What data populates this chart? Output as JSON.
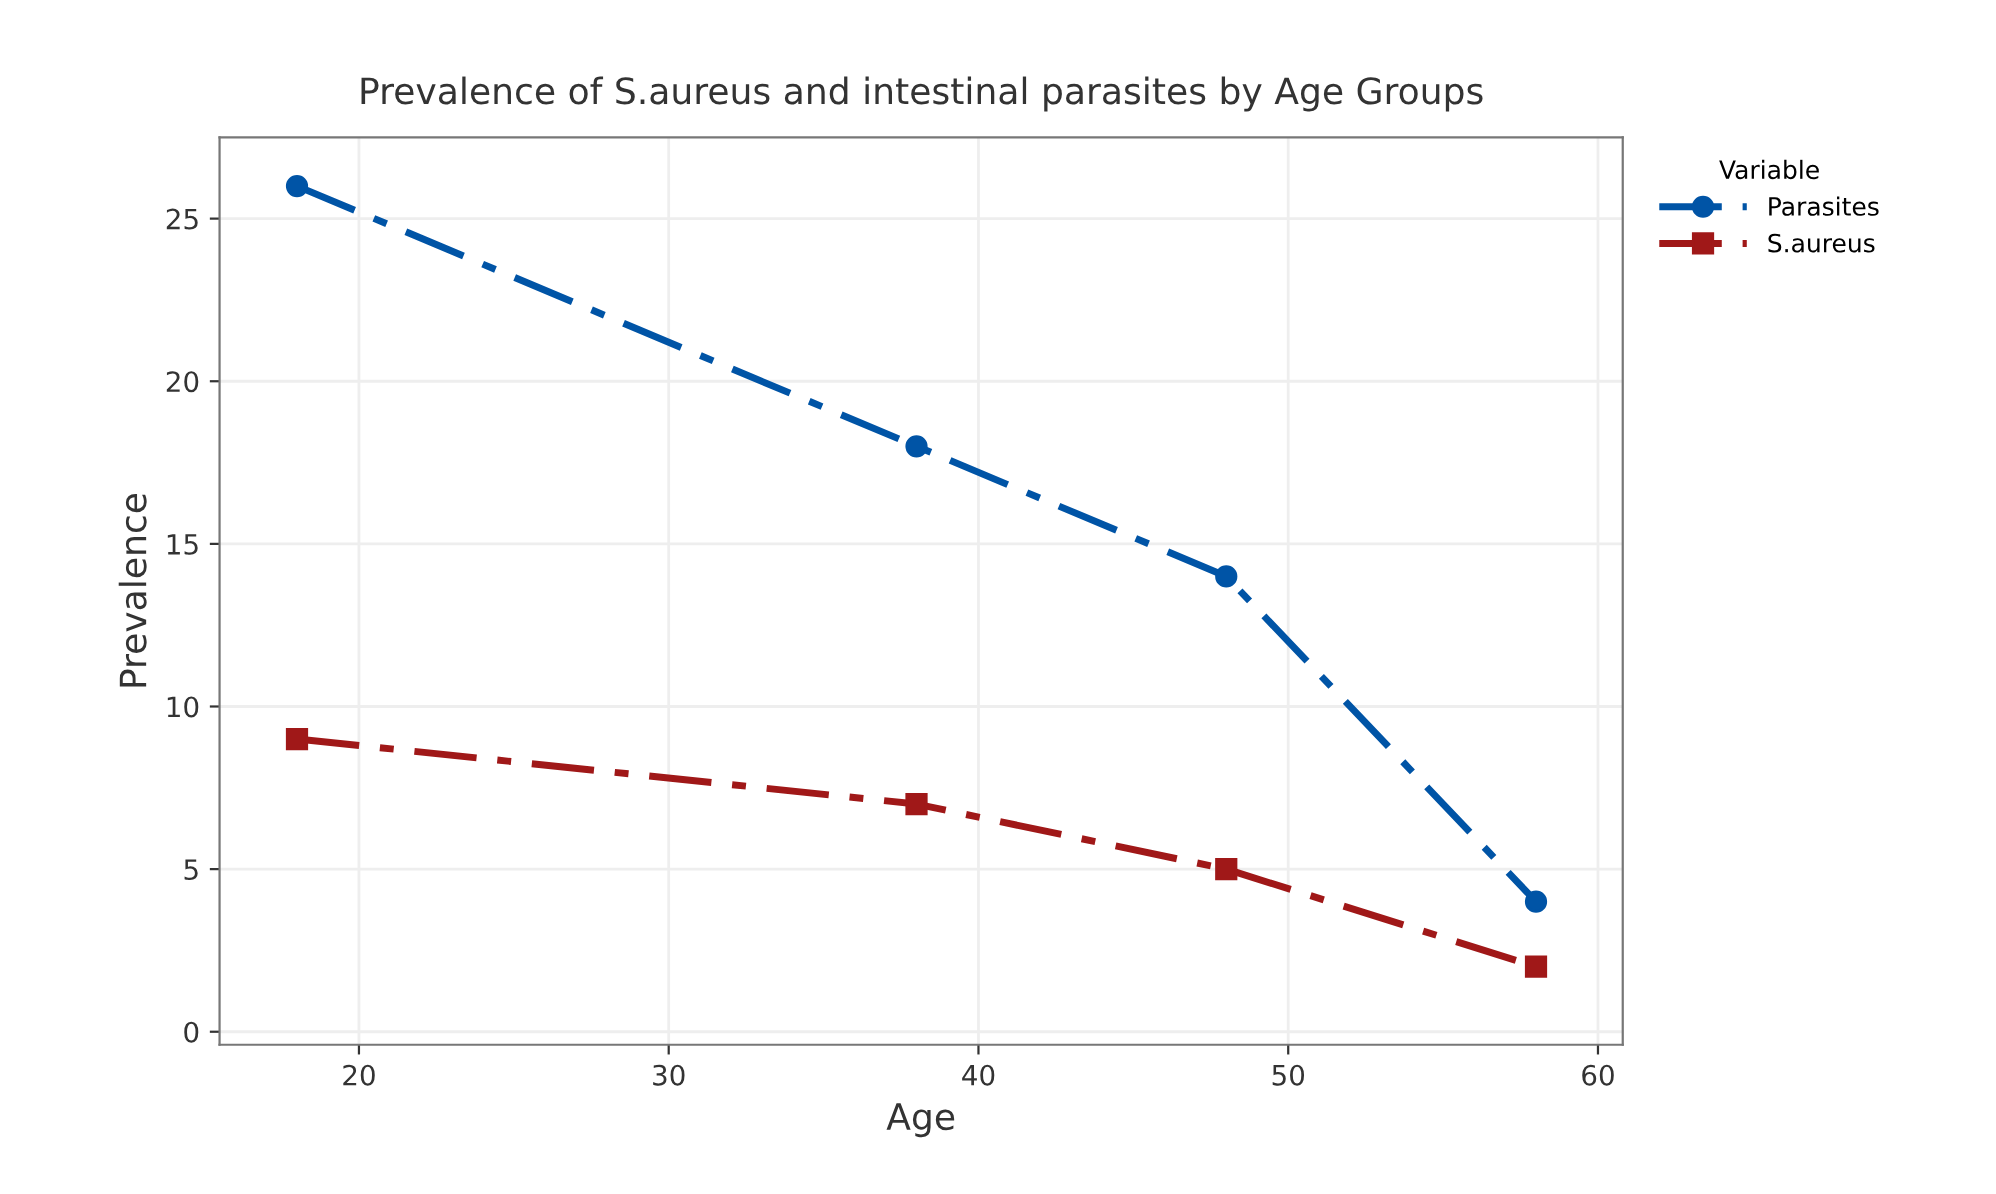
{
  "chart_data": {
    "type": "line",
    "title": "Prevalence of S.aureus and intestinal parasites by Age Groups",
    "xlabel": "Age",
    "ylabel": "Prevalence",
    "legend_title": "Variable",
    "legend": "top right",
    "grid": true,
    "line_style": "dashed",
    "xlim": [
      15.5,
      60.8
    ],
    "ylim": [
      -0.4,
      27.5
    ],
    "xticks": [
      20,
      30,
      40,
      50,
      60
    ],
    "yticks": [
      0,
      5,
      10,
      15,
      20,
      25
    ],
    "series": [
      {
        "name": "Parasites",
        "color": "#0054a6",
        "marker": "circle",
        "x": [
          18,
          38,
          48,
          58
        ],
        "values": [
          26,
          18,
          14,
          4
        ]
      },
      {
        "name": "S.aureus",
        "color": "#a01818",
        "marker": "square",
        "x": [
          18,
          38,
          48,
          58
        ],
        "values": [
          9,
          7,
          5,
          2
        ]
      }
    ]
  }
}
